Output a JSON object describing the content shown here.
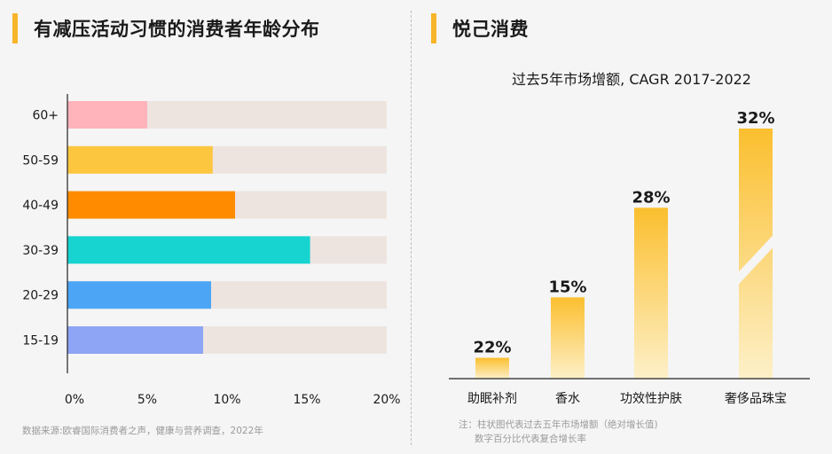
{
  "left_panel": {
    "title": "有减压活动习惯的消费者年龄分布",
    "source": "数据来源:欧睿国际消费者之声，健康与营养调查，2022年"
  },
  "right_panel": {
    "title": "悦己消费",
    "note_line1": "注：柱状图代表过去五年市场增额（绝对增长值)",
    "note_line2": "数字百分比代表复合增长率"
  },
  "chart_data": [
    {
      "type": "bar",
      "orientation": "horizontal",
      "title": "有减压活动习惯的消费者年龄分布",
      "categories": [
        "60+",
        "50-59",
        "40-49",
        "30-39",
        "20-29",
        "15-19"
      ],
      "values": [
        5.0,
        9.1,
        10.5,
        15.2,
        9.0,
        8.5
      ],
      "colors": [
        "#ffb3ba",
        "#fcc63f",
        "#ff8c00",
        "#17d4d0",
        "#4da6f5",
        "#8ea4f5"
      ],
      "track_color": "#ede4e0",
      "xlim": [
        0,
        20
      ],
      "xticks": [
        "0%",
        "5%",
        "10%",
        "15%",
        "20%"
      ],
      "grid": false
    },
    {
      "type": "bar",
      "orientation": "vertical",
      "title": "过去5年市场增额, CAGR 2017-2022",
      "categories": [
        "助眠补剂",
        "香水",
        "功效性护肤",
        "奢侈品珠宝"
      ],
      "values": [
        1.0,
        3.9,
        8.2,
        12.0
      ],
      "data_labels": [
        "22%",
        "15%",
        "28%",
        "32%"
      ],
      "bar_color_top": "#fbbf2f",
      "bar_color_bottom": "#fdf0c8",
      "broken_axis_on": "奢侈品珠宝",
      "grid": false
    }
  ]
}
